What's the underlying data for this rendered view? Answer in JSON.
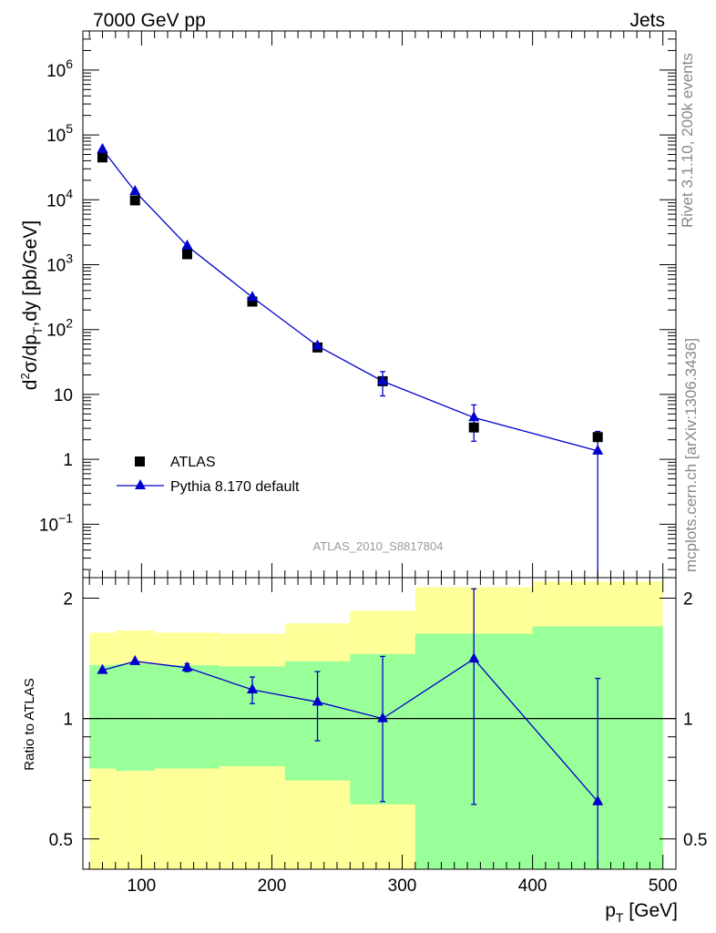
{
  "header": {
    "left": "7000 GeV pp",
    "right": "Jets"
  },
  "side_labels": {
    "top": "Rivet 3.1.10,  200k events",
    "bottom": "mcplots.cern.ch [arXiv:1306.3436]"
  },
  "analysis_id": "ATLAS_2010_S8817804",
  "colors": {
    "data": "#000000",
    "mc": "#0000cc",
    "band_inner": "#99ff99",
    "band_outer": "#ffff99"
  },
  "chart_data": [
    {
      "type": "line",
      "title": "",
      "xlabel": "p_T [GeV]",
      "ylabel": "d²σ/dp_T,dy [pb/GeV]",
      "xlim": [
        55,
        510
      ],
      "ylim": [
        0.015,
        4000000
      ],
      "yscale": "log",
      "y_tick_labels": [
        "10^-1",
        "1",
        "10",
        "10^2",
        "10^3",
        "10^4",
        "10^5",
        "10^6"
      ],
      "x_tick_labels": [
        "100",
        "200",
        "300",
        "400",
        "500"
      ],
      "legend_position": "bottom-left",
      "series": [
        {
          "name": "ATLAS",
          "marker": "square",
          "x": [
            70,
            95,
            135,
            185,
            235,
            285,
            355,
            450
          ],
          "y": [
            45000,
            9800,
            1450,
            270,
            53,
            16,
            3.1,
            2.2
          ],
          "yerr": [
            0,
            0,
            0,
            0,
            0,
            0,
            0,
            0
          ]
        },
        {
          "name": "Pythia 8.170 default",
          "marker": "triangle",
          "x": [
            70,
            95,
            135,
            185,
            235,
            285,
            355,
            450
          ],
          "y": [
            60000,
            13500,
            1950,
            315,
            56,
            16,
            4.4,
            1.35
          ],
          "yerr_low": [
            0,
            0,
            0,
            0,
            0,
            6.5,
            2.5,
            1.34
          ],
          "yerr_high": [
            0,
            0,
            0,
            0,
            0,
            6.5,
            2.5,
            1.34
          ]
        }
      ]
    },
    {
      "type": "line",
      "title": "",
      "xlabel": "p_T [GeV]",
      "ylabel": "Ratio to ATLAS",
      "xlim": [
        55,
        510
      ],
      "ylim": [
        0.42,
        2.25
      ],
      "yscale": "log",
      "y_tick_labels": [
        "0.5",
        "1",
        "2"
      ],
      "x_tick_labels": [
        "100",
        "200",
        "300",
        "400",
        "500"
      ],
      "reference_line": 1,
      "bins": [
        [
          60,
          80
        ],
        [
          80,
          110
        ],
        [
          110,
          160
        ],
        [
          160,
          210
        ],
        [
          210,
          260
        ],
        [
          260,
          310
        ],
        [
          310,
          400
        ],
        [
          400,
          500
        ]
      ],
      "band_inner": {
        "low": [
          0.75,
          0.74,
          0.75,
          0.76,
          0.7,
          0.61,
          0.37,
          0.37
        ],
        "high": [
          1.36,
          1.37,
          1.36,
          1.35,
          1.39,
          1.45,
          1.63,
          1.7
        ]
      },
      "band_outer": {
        "low": [
          0.37,
          0.37,
          0.37,
          0.39,
          0.37,
          0.37,
          0.38,
          0.37
        ],
        "high": [
          1.64,
          1.66,
          1.64,
          1.63,
          1.73,
          1.86,
          2.13,
          2.2
        ]
      },
      "series": [
        {
          "name": "Pythia 8.170 default",
          "marker": "triangle",
          "x": [
            70,
            95,
            135,
            185,
            235,
            285,
            355,
            450
          ],
          "y": [
            1.32,
            1.39,
            1.34,
            1.18,
            1.1,
            1.0,
            1.41,
            0.62
          ],
          "yerr_low": [
            0,
            0,
            0.03,
            0.09,
            0.22,
            0.38,
            0.8,
            0.62
          ],
          "yerr_high": [
            0,
            0,
            0.03,
            0.09,
            0.21,
            0.43,
            0.7,
            0.64
          ]
        }
      ]
    }
  ]
}
